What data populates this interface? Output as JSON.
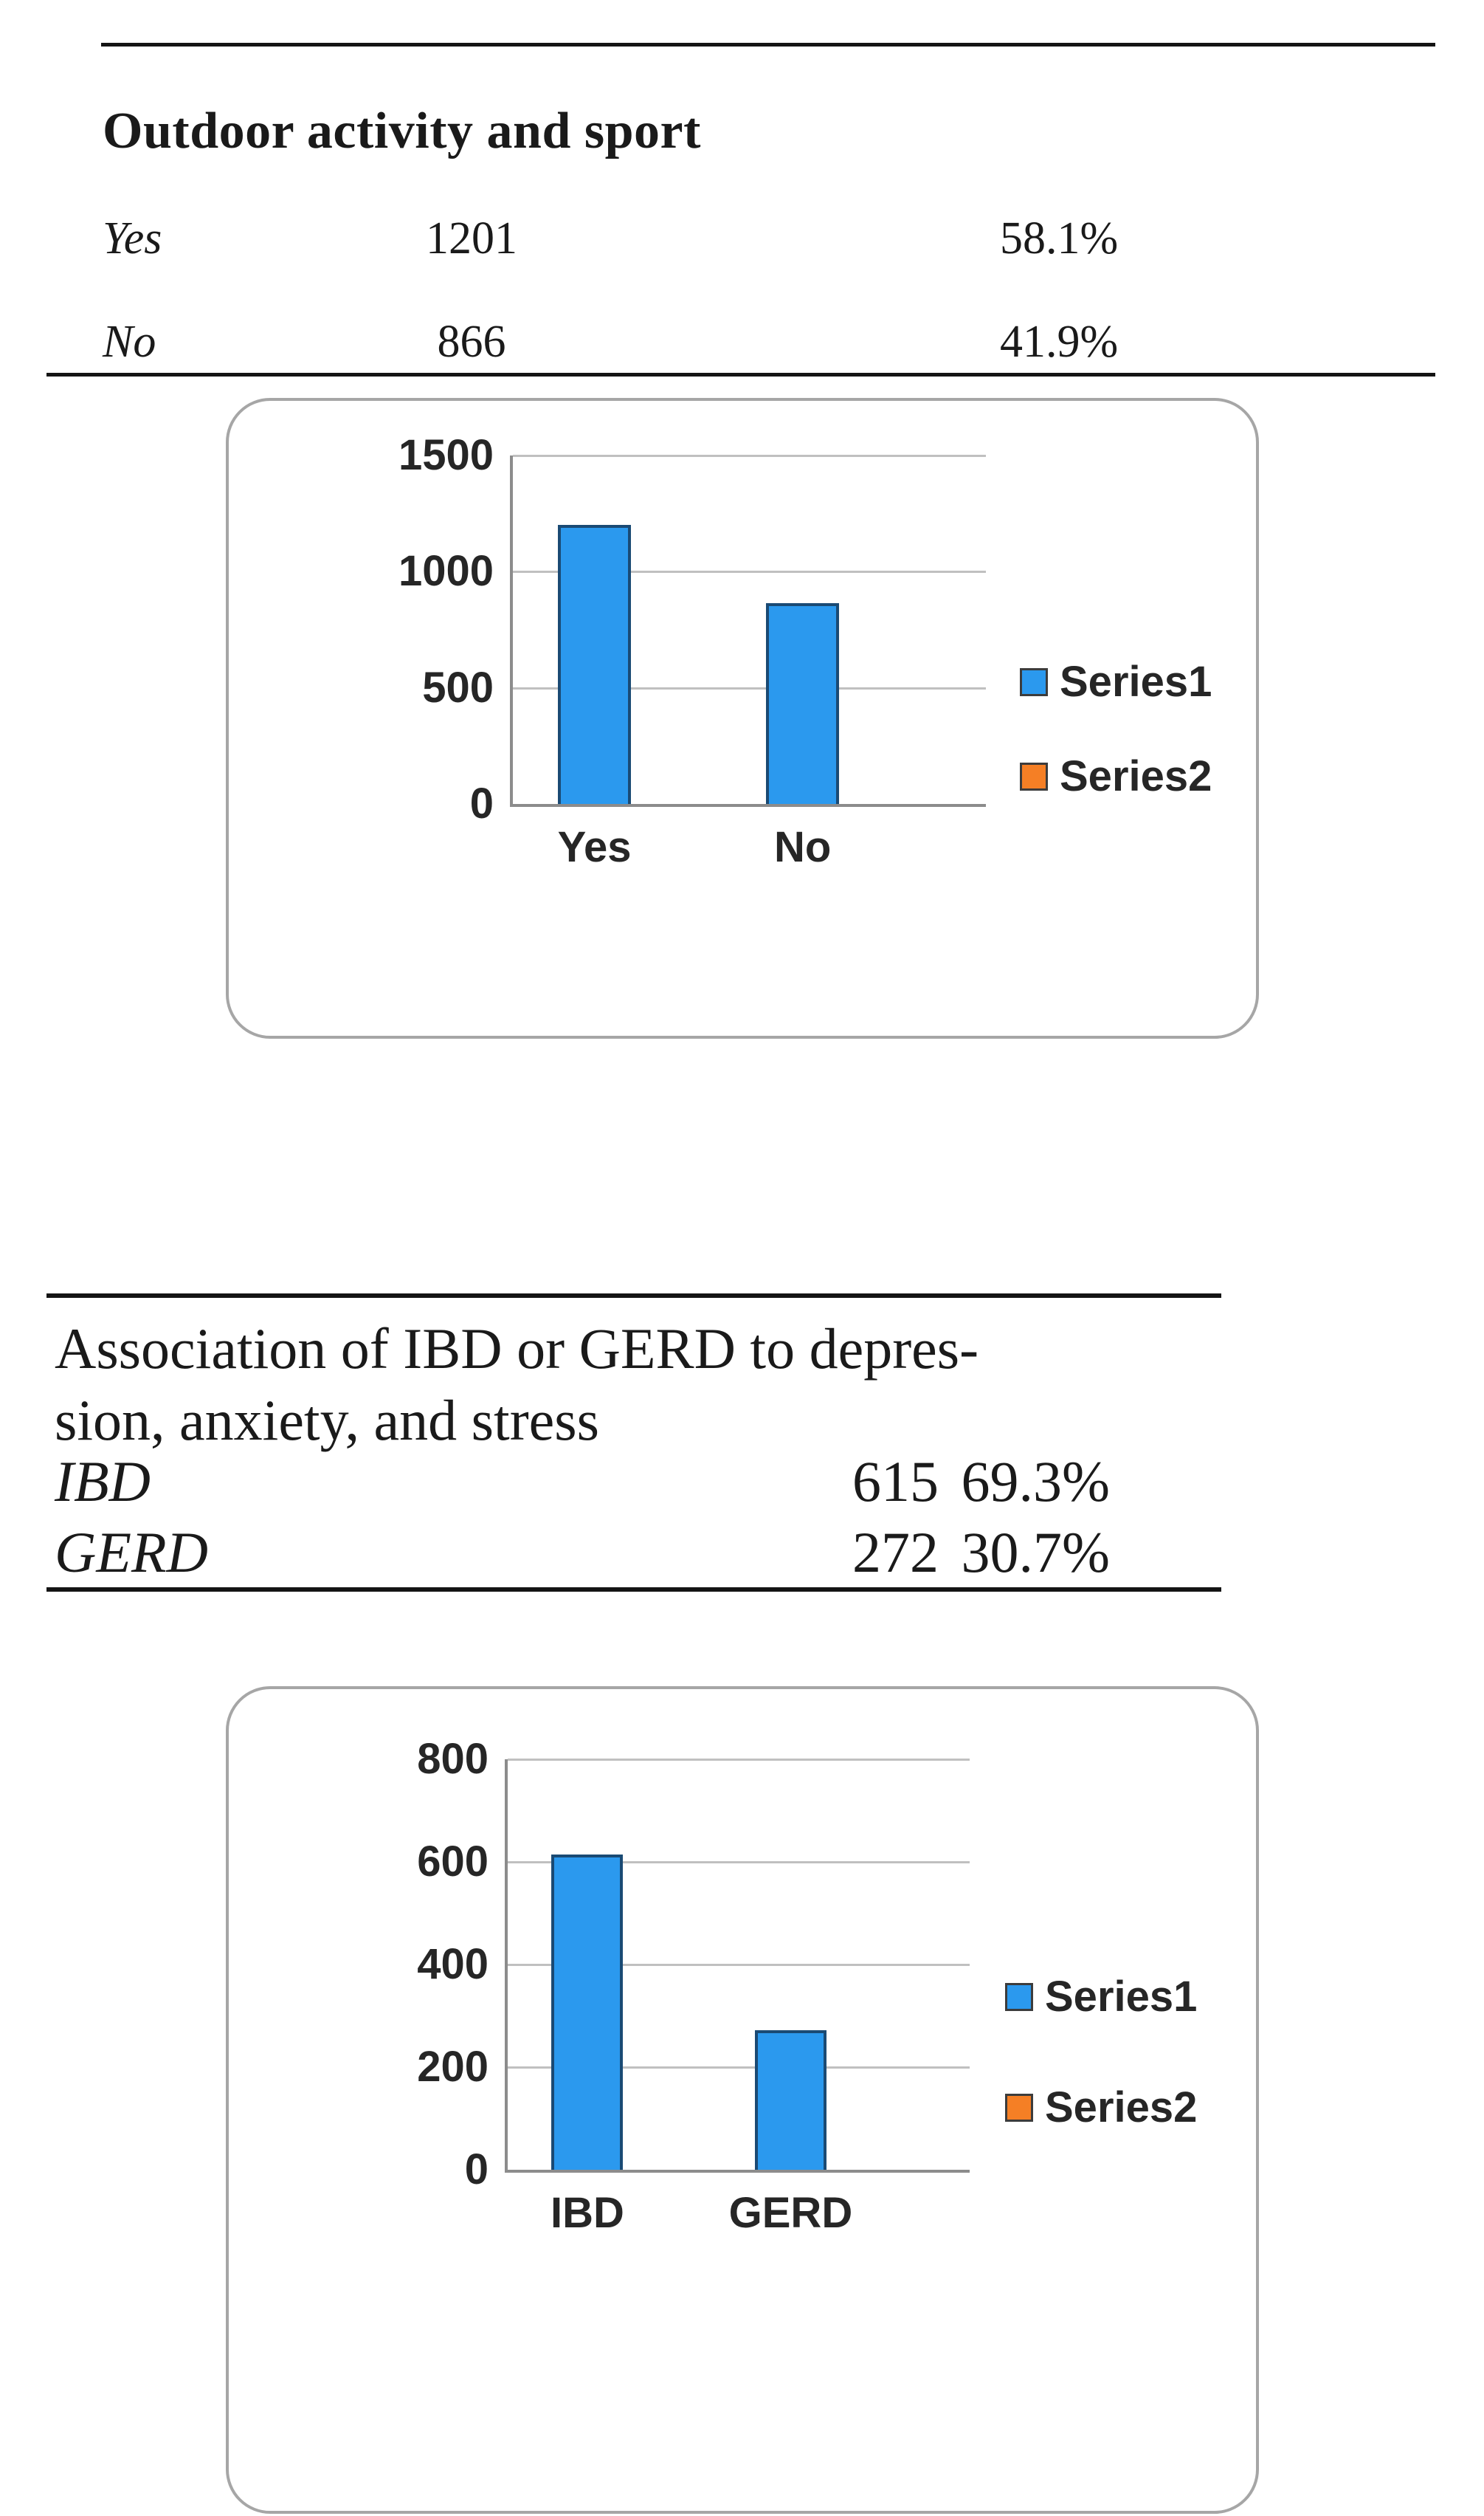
{
  "sections": [
    {
      "title": "Outdoor activity and sport",
      "rows": [
        {
          "label": "Yes",
          "count": "1201",
          "percent": "58.1%"
        },
        {
          "label": "No",
          "count": "866",
          "percent": "41.9%"
        }
      ]
    },
    {
      "title_lines": [
        "Association of IBD or GERD to depres-",
        "sion, anxiety, and stress"
      ],
      "rows": [
        {
          "label": "IBD",
          "count": "615",
          "percent": "69.3%"
        },
        {
          "label": "GERD",
          "count": "272",
          "percent": "30.7%"
        }
      ]
    }
  ],
  "chart_data": [
    {
      "type": "bar",
      "title": "",
      "xlabel": "",
      "ylabel": "",
      "categories": [
        "Yes",
        "No"
      ],
      "series": [
        {
          "name": "Series1",
          "values": [
            1201,
            866
          ],
          "color": "#2b99ee"
        },
        {
          "name": "Series2",
          "values": [],
          "color": "#f57f25"
        }
      ],
      "ylim": [
        0,
        1500
      ],
      "yticks": [
        0,
        500,
        1000,
        1500
      ],
      "grid": true,
      "legend_position": "right"
    },
    {
      "type": "bar",
      "title": "",
      "xlabel": "",
      "ylabel": "",
      "categories": [
        "IBD",
        "GERD"
      ],
      "series": [
        {
          "name": "Series1",
          "values": [
            615,
            272
          ],
          "color": "#2b99ee"
        },
        {
          "name": "Series2",
          "values": [],
          "color": "#f57f25"
        }
      ],
      "ylim": [
        0,
        800
      ],
      "yticks": [
        0,
        200,
        400,
        600,
        800
      ],
      "grid": true,
      "legend_position": "right"
    }
  ],
  "colors": {
    "bar_fill": "#2b99ee",
    "bar_border": "#1a4a74",
    "series2_fill": "#f57f25",
    "swatch_border": "#3c3c3c",
    "gridline": "#c0c0c0",
    "axis_line": "#8c8c8c",
    "card_border": "#a6a6a6",
    "text": "#1a1a1a"
  }
}
